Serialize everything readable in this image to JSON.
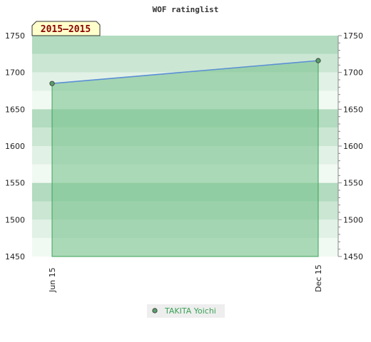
{
  "chart_data": {
    "type": "area",
    "title": "WOF ratinglist",
    "period_label": "2015—2015",
    "x": [
      "Jun 15",
      "Dec 15"
    ],
    "series": [
      {
        "name": "TAKITA Yoichi",
        "values": [
          1685,
          1716
        ]
      }
    ],
    "ylim": [
      1450,
      1750
    ],
    "yticks": [
      1450,
      1500,
      1550,
      1600,
      1650,
      1700,
      1750
    ],
    "y_axis_sides": [
      "left",
      "right"
    ],
    "grid": true,
    "legend_position": "bottom-center",
    "colors": {
      "line": "#5b8fd6",
      "fill": "#7cc38f",
      "fill_border": "#3aa257",
      "marker": "#5a9e6a",
      "band_dark": "#b2dbbf",
      "band_mid": "#cbe6d3",
      "band_light": "#e1f1e6",
      "band_pale": "#f1f9f3",
      "badge_bg": "#ffffcc",
      "badge_text": "#8b0000"
    }
  }
}
